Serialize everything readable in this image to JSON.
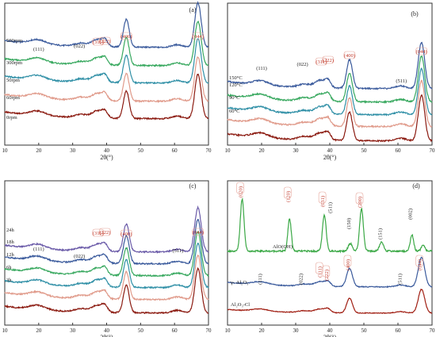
{
  "figure": {
    "panels": [
      {
        "label": "(a)",
        "xlabel": "2θ(°)",
        "xticks": [
          10,
          20,
          30,
          40,
          50,
          60,
          70
        ],
        "series": [
          {
            "name": "500rpm",
            "color": "#3a5a9c"
          },
          {
            "name": "300rpm",
            "color": "#37a85e"
          },
          {
            "name": "50rpm",
            "color": "#2f8fa6"
          },
          {
            "name": "60rpm",
            "color": "#e09a8a"
          },
          {
            "name": "0rpm",
            "color": "#8b1a10"
          }
        ],
        "peaks": [
          {
            "label": "(111)",
            "color": "#222222"
          },
          {
            "label": "(022)",
            "color": "#222222"
          },
          {
            "label": "(311)",
            "color": "#c0392b"
          },
          {
            "label": "(222)",
            "color": "#c0392b"
          },
          {
            "label": "(400)",
            "color": "#c0392b"
          },
          {
            "label": "(044)",
            "color": "#c0392b"
          }
        ]
      },
      {
        "label": "(b)",
        "xlabel": "2θ(°)",
        "xticks": [
          10,
          20,
          30,
          40,
          50,
          60,
          70
        ],
        "series": [
          {
            "name": "150°C",
            "color": "#3a5a9c"
          },
          {
            "name": "120°C",
            "color": "#37a85e"
          },
          {
            "name": "90°C",
            "color": "#2f8fa6"
          },
          {
            "name": "60°C",
            "color": "#e09a8a"
          },
          {
            "name": "",
            "color": "#8b1a10"
          }
        ],
        "peaks": [
          {
            "label": "(111)",
            "color": "#222222"
          },
          {
            "label": "(022)",
            "color": "#222222"
          },
          {
            "label": "(311)",
            "color": "#c0392b"
          },
          {
            "label": "(222)",
            "color": "#c0392b"
          },
          {
            "label": "(400)",
            "color": "#c0392b"
          },
          {
            "label": "(511)",
            "color": "#222222"
          },
          {
            "label": "(044)",
            "color": "#c0392b"
          }
        ]
      },
      {
        "label": "(c)",
        "xlabel": "2θ(°)",
        "xticks": [
          10,
          20,
          30,
          40,
          50,
          60,
          70
        ],
        "series": [
          {
            "name": "24h",
            "color": "#6a5aa8"
          },
          {
            "name": "18h",
            "color": "#3a5a9c"
          },
          {
            "name": "12h",
            "color": "#37a85e"
          },
          {
            "name": "6h",
            "color": "#2f8fa6"
          },
          {
            "name": "3h",
            "color": "#e09a8a"
          },
          {
            "name": "",
            "color": "#8b1a10"
          }
        ],
        "peaks": [
          {
            "label": "(111)",
            "color": "#222222"
          },
          {
            "label": "(022)",
            "color": "#222222"
          },
          {
            "label": "(311)",
            "color": "#c0392b"
          },
          {
            "label": "(222)",
            "color": "#c0392b"
          },
          {
            "label": "(400)",
            "color": "#c0392b"
          },
          {
            "label": "(511)",
            "color": "#222222"
          },
          {
            "label": "(044)",
            "color": "#c0392b"
          }
        ]
      },
      {
        "label": "(d)",
        "xlabel": "2θ(°)",
        "xticks": [
          10,
          20,
          30,
          40,
          50,
          60,
          70
        ],
        "series": [
          {
            "name": "AlO(OH)",
            "color": "#3aa845"
          },
          {
            "name": "γ- Al₂O₃",
            "color": "#3a5a9c"
          },
          {
            "name": "Al₂O₃-Cl",
            "color": "#a01e12"
          }
        ],
        "peaks_top": [
          {
            "label": "(020)",
            "color": "#c0392b"
          },
          {
            "label": "(120)",
            "color": "#c0392b"
          },
          {
            "label": "(031)",
            "color": "#c0392b"
          },
          {
            "label": "(511)",
            "color": "#222222"
          },
          {
            "label": "(150)",
            "color": "#222222"
          },
          {
            "label": "(200)",
            "color": "#c0392b"
          },
          {
            "label": "(151)",
            "color": "#222222"
          },
          {
            "label": "(002)",
            "color": "#222222"
          }
        ],
        "peaks_mid": [
          {
            "label": "(111)",
            "color": "#222222"
          },
          {
            "label": "(022)",
            "color": "#222222"
          },
          {
            "label": "(311)",
            "color": "#c0392b"
          },
          {
            "label": "(222)",
            "color": "#c0392b"
          },
          {
            "label": "(400)",
            "color": "#c0392b"
          },
          {
            "label": "(511)",
            "color": "#222222"
          },
          {
            "label": "(044)",
            "color": "#c0392b"
          }
        ]
      }
    ]
  }
}
